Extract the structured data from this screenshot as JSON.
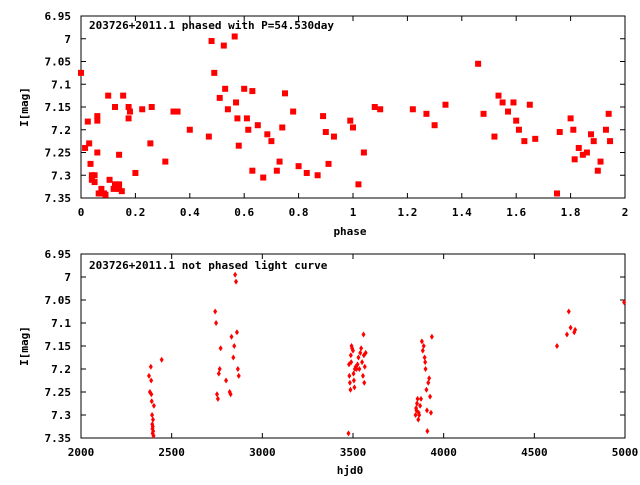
{
  "chart_data": [
    {
      "type": "scatter",
      "title": "203726+2011.1 phased with P=54.530day",
      "xlabel": "phase",
      "ylabel": "I[mag]",
      "xlim": [
        0,
        2
      ],
      "ylim": [
        6.95,
        7.35
      ],
      "y_inverted": true,
      "grid": false,
      "marker": "filled-square",
      "color": "#ff0000",
      "xticks": [
        "0",
        "0.2",
        "0.4",
        "0.6",
        "0.8",
        "1",
        "1.2",
        "1.4",
        "1.6",
        "1.8",
        "2"
      ],
      "xtick_values": [
        0,
        0.2,
        0.4,
        0.6,
        0.8,
        1,
        1.2,
        1.4,
        1.6,
        1.8,
        2
      ],
      "yticks": [
        "6.95",
        "7",
        "7.05",
        "7.1",
        "7.15",
        "7.2",
        "7.25",
        "7.3",
        "7.35"
      ],
      "ytick_values": [
        6.95,
        7,
        7.05,
        7.1,
        7.15,
        7.2,
        7.25,
        7.3,
        7.35
      ],
      "points": [
        [
          0.0,
          7.075
        ],
        [
          0.015,
          7.24
        ],
        [
          0.025,
          7.182
        ],
        [
          0.03,
          7.23
        ],
        [
          0.035,
          7.275
        ],
        [
          0.04,
          7.3
        ],
        [
          0.04,
          7.31
        ],
        [
          0.05,
          7.3
        ],
        [
          0.05,
          7.315
        ],
        [
          0.06,
          7.17
        ],
        [
          0.06,
          7.18
        ],
        [
          0.06,
          7.25
        ],
        [
          0.065,
          7.34
        ],
        [
          0.07,
          7.34
        ],
        [
          0.075,
          7.33
        ],
        [
          0.08,
          7.34
        ],
        [
          0.085,
          7.34
        ],
        [
          0.09,
          7.343
        ],
        [
          0.1,
          7.125
        ],
        [
          0.105,
          7.31
        ],
        [
          0.12,
          7.33
        ],
        [
          0.125,
          7.32
        ],
        [
          0.125,
          7.15
        ],
        [
          0.14,
          7.32
        ],
        [
          0.14,
          7.33
        ],
        [
          0.14,
          7.255
        ],
        [
          0.15,
          7.335
        ],
        [
          0.155,
          7.125
        ],
        [
          0.175,
          7.15
        ],
        [
          0.175,
          7.175
        ],
        [
          0.18,
          7.16
        ],
        [
          0.2,
          7.295
        ],
        [
          0.225,
          7.155
        ],
        [
          0.255,
          7.23
        ],
        [
          0.26,
          7.15
        ],
        [
          0.31,
          7.27
        ],
        [
          0.34,
          7.16
        ],
        [
          0.355,
          7.16
        ],
        [
          0.4,
          7.2
        ],
        [
          0.47,
          7.215
        ],
        [
          0.48,
          7.005
        ],
        [
          0.49,
          7.075
        ],
        [
          0.51,
          7.13
        ],
        [
          0.525,
          7.015
        ],
        [
          0.53,
          7.11
        ],
        [
          0.54,
          7.155
        ],
        [
          0.565,
          6.995
        ],
        [
          0.57,
          7.14
        ],
        [
          0.575,
          7.175
        ],
        [
          0.58,
          7.235
        ],
        [
          0.6,
          7.11
        ],
        [
          0.61,
          7.175
        ],
        [
          0.615,
          7.2
        ],
        [
          0.63,
          7.29
        ],
        [
          0.63,
          7.115
        ],
        [
          0.65,
          7.19
        ],
        [
          0.67,
          7.305
        ],
        [
          0.685,
          7.21
        ],
        [
          0.7,
          7.225
        ],
        [
          0.72,
          7.29
        ],
        [
          0.73,
          7.27
        ],
        [
          0.74,
          7.195
        ],
        [
          0.75,
          7.12
        ],
        [
          0.78,
          7.16
        ],
        [
          0.8,
          7.28
        ],
        [
          0.83,
          7.295
        ],
        [
          0.87,
          7.3
        ],
        [
          0.89,
          7.17
        ],
        [
          0.9,
          7.205
        ],
        [
          0.91,
          7.275
        ],
        [
          0.93,
          7.215
        ],
        [
          0.99,
          7.18
        ],
        [
          1.0,
          7.195
        ],
        [
          1.02,
          7.32
        ],
        [
          1.04,
          7.25
        ],
        [
          1.08,
          7.15
        ],
        [
          1.1,
          7.155
        ],
        [
          1.22,
          7.155
        ],
        [
          1.27,
          7.165
        ],
        [
          1.3,
          7.19
        ],
        [
          1.34,
          7.145
        ],
        [
          1.46,
          7.055
        ],
        [
          1.48,
          7.165
        ],
        [
          1.52,
          7.215
        ],
        [
          1.535,
          7.125
        ],
        [
          1.55,
          7.14
        ],
        [
          1.57,
          7.16
        ],
        [
          1.59,
          7.14
        ],
        [
          1.6,
          7.18
        ],
        [
          1.61,
          7.2
        ],
        [
          1.63,
          7.225
        ],
        [
          1.65,
          7.145
        ],
        [
          1.67,
          7.22
        ],
        [
          1.75,
          7.34
        ],
        [
          1.76,
          7.205
        ],
        [
          1.8,
          7.175
        ],
        [
          1.81,
          7.2
        ],
        [
          1.815,
          7.265
        ],
        [
          1.83,
          7.24
        ],
        [
          1.845,
          7.255
        ],
        [
          1.86,
          7.25
        ],
        [
          1.875,
          7.21
        ],
        [
          1.885,
          7.225
        ],
        [
          1.9,
          7.29
        ],
        [
          1.91,
          7.27
        ],
        [
          1.93,
          7.2
        ],
        [
          1.94,
          7.165
        ],
        [
          1.945,
          7.225
        ]
      ]
    },
    {
      "type": "scatter",
      "title": "203726+2011.1 not phased light curve",
      "xlabel": "hjd0",
      "ylabel": "I[mag]",
      "xlim": [
        2000,
        5000
      ],
      "ylim": [
        6.95,
        7.35
      ],
      "y_inverted": true,
      "grid": false,
      "marker": "small-diamond",
      "color": "#ff0000",
      "xticks": [
        "2000",
        "2500",
        "3000",
        "3500",
        "4000",
        "4500",
        "5000"
      ],
      "xtick_values": [
        2000,
        2500,
        3000,
        3500,
        4000,
        4500,
        5000
      ],
      "yticks": [
        "6.95",
        "7",
        "7.05",
        "7.1",
        "7.15",
        "7.2",
        "7.25",
        "7.3",
        "7.35"
      ],
      "ytick_values": [
        6.95,
        7,
        7.05,
        7.1,
        7.15,
        7.2,
        7.25,
        7.3,
        7.35
      ],
      "points": [
        [
          2375,
          7.215
        ],
        [
          2380,
          7.25
        ],
        [
          2385,
          7.195
        ],
        [
          2387,
          7.225
        ],
        [
          2388,
          7.255
        ],
        [
          2390,
          7.27
        ],
        [
          2392,
          7.3
        ],
        [
          2393,
          7.32
        ],
        [
          2394,
          7.33
        ],
        [
          2395,
          7.34
        ],
        [
          2396,
          7.325
        ],
        [
          2397,
          7.31
        ],
        [
          2398,
          7.335
        ],
        [
          2400,
          7.345
        ],
        [
          2402,
          7.28
        ],
        [
          2445,
          7.18
        ],
        [
          2740,
          7.075
        ],
        [
          2745,
          7.1
        ],
        [
          2750,
          7.255
        ],
        [
          2755,
          7.265
        ],
        [
          2760,
          7.21
        ],
        [
          2765,
          7.2
        ],
        [
          2770,
          7.155
        ],
        [
          2800,
          7.225
        ],
        [
          2820,
          7.25
        ],
        [
          2825,
          7.255
        ],
        [
          2830,
          7.13
        ],
        [
          2840,
          7.175
        ],
        [
          2845,
          7.15
        ],
        [
          2850,
          6.995
        ],
        [
          2855,
          7.01
        ],
        [
          2860,
          7.12
        ],
        [
          2865,
          7.2
        ],
        [
          2870,
          7.215
        ],
        [
          3475,
          7.34
        ],
        [
          3478,
          7.19
        ],
        [
          3480,
          7.215
        ],
        [
          3483,
          7.23
        ],
        [
          3486,
          7.245
        ],
        [
          3488,
          7.17
        ],
        [
          3490,
          7.185
        ],
        [
          3492,
          7.15
        ],
        [
          3495,
          7.155
        ],
        [
          3500,
          7.16
        ],
        [
          3503,
          7.21
        ],
        [
          3505,
          7.225
        ],
        [
          3508,
          7.24
        ],
        [
          3510,
          7.2
        ],
        [
          3515,
          7.195
        ],
        [
          3520,
          7.2
        ],
        [
          3525,
          7.19
        ],
        [
          3530,
          7.175
        ],
        [
          3535,
          7.2
        ],
        [
          3540,
          7.165
        ],
        [
          3545,
          7.155
        ],
        [
          3550,
          7.185
        ],
        [
          3555,
          7.215
        ],
        [
          3558,
          7.125
        ],
        [
          3560,
          7.17
        ],
        [
          3562,
          7.23
        ],
        [
          3565,
          7.195
        ],
        [
          3570,
          7.165
        ],
        [
          3845,
          7.3
        ],
        [
          3848,
          7.285
        ],
        [
          3850,
          7.29
        ],
        [
          3853,
          7.275
        ],
        [
          3856,
          7.265
        ],
        [
          3860,
          7.31
        ],
        [
          3862,
          7.295
        ],
        [
          3865,
          7.3
        ],
        [
          3870,
          7.28
        ],
        [
          3875,
          7.265
        ],
        [
          3880,
          7.14
        ],
        [
          3885,
          7.16
        ],
        [
          3890,
          7.15
        ],
        [
          3895,
          7.175
        ],
        [
          3898,
          7.185
        ],
        [
          3900,
          7.2
        ],
        [
          3905,
          7.245
        ],
        [
          3908,
          7.29
        ],
        [
          3910,
          7.335
        ],
        [
          3915,
          7.23
        ],
        [
          3920,
          7.22
        ],
        [
          3925,
          7.26
        ],
        [
          3930,
          7.295
        ],
        [
          3935,
          7.13
        ],
        [
          4625,
          7.15
        ],
        [
          4680,
          7.125
        ],
        [
          4690,
          7.075
        ],
        [
          4700,
          7.11
        ],
        [
          4720,
          7.12
        ],
        [
          4725,
          7.115
        ],
        [
          4995,
          7.055
        ]
      ]
    }
  ]
}
